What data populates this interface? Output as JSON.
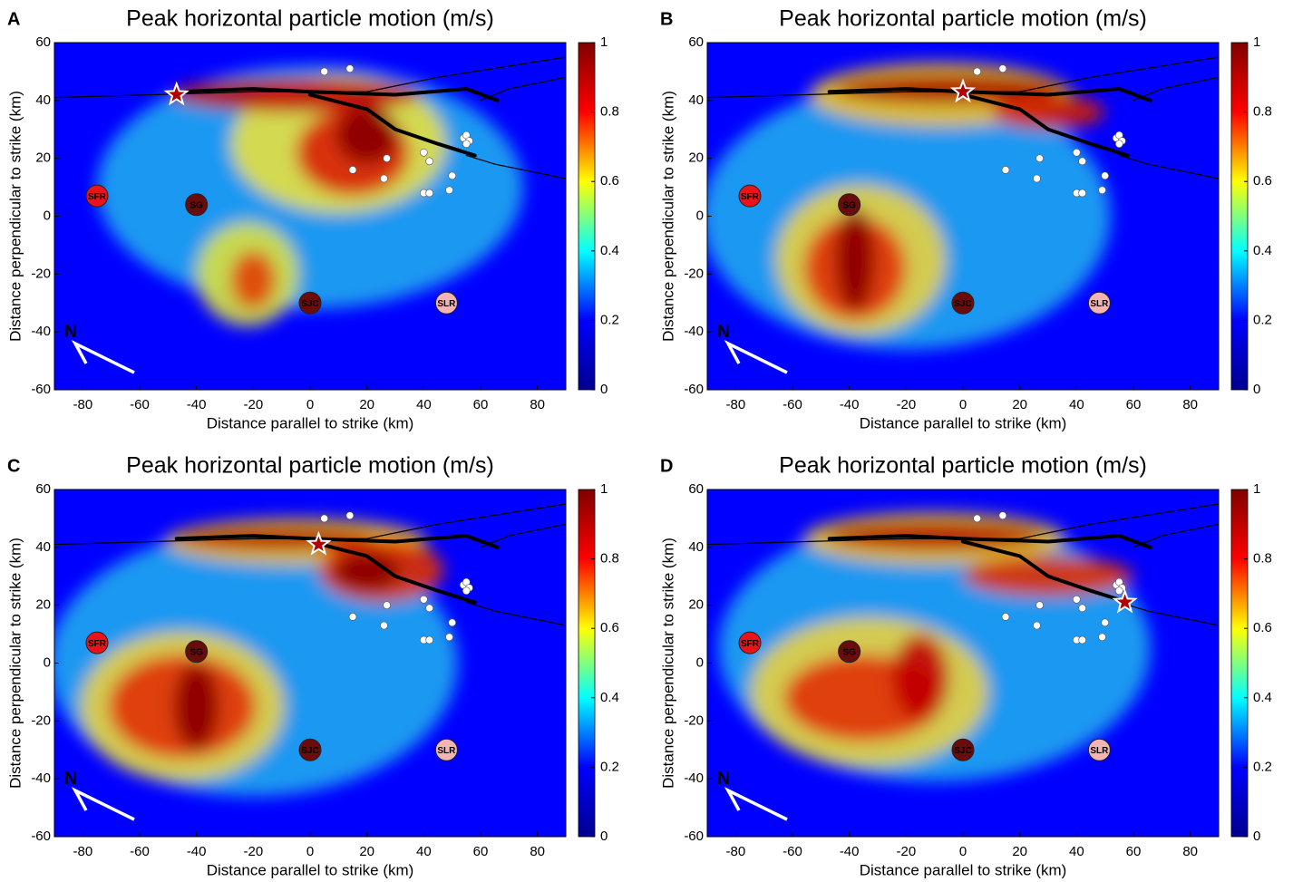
{
  "chart_data": [
    {
      "type": "heatmap",
      "panel": "A",
      "title": "Peak horizontal particle motion (m/s)",
      "x_label": "Distance parallel to strike (km)",
      "y_label": "Distance perpendicular to strike (km)",
      "xlim": [
        -90,
        90
      ],
      "ylim": [
        -60,
        60
      ],
      "xticks": [
        -80,
        -60,
        -40,
        -20,
        0,
        20,
        40,
        60,
        80
      ],
      "yticks": [
        -60,
        -40,
        -20,
        0,
        20,
        40,
        60
      ],
      "colorbar": {
        "lim": [
          0,
          1
        ],
        "ticks": [
          0,
          0.2,
          0.4,
          0.6,
          0.8,
          1
        ],
        "colors": [
          "#00008f",
          "#0000ff",
          "#00ffff",
          "#ffff00",
          "#ff0000",
          "#800000"
        ]
      },
      "north_label": "N",
      "hypocenter": {
        "x": -47,
        "y": 42
      },
      "sites": [
        {
          "label": "SFR",
          "x": -75,
          "y": 7,
          "color": "#e8141a"
        },
        {
          "label": "SG",
          "x": -40,
          "y": 4,
          "color": "#6b0b0b"
        },
        {
          "label": "SJC",
          "x": 0,
          "y": -30,
          "color": "#6b0b0b"
        },
        {
          "label": "SLR",
          "x": 48,
          "y": -30,
          "color": "#f4b4b4"
        }
      ]
    },
    {
      "type": "heatmap",
      "panel": "B",
      "title": "Peak horizontal particle motion (m/s)",
      "x_label": "Distance parallel to strike (km)",
      "y_label": "Distance perpendicular to strike (km)",
      "xlim": [
        -90,
        90
      ],
      "ylim": [
        -60,
        60
      ],
      "xticks": [
        -80,
        -60,
        -40,
        -20,
        0,
        20,
        40,
        60,
        80
      ],
      "yticks": [
        -60,
        -40,
        -20,
        0,
        20,
        40,
        60
      ],
      "colorbar": {
        "lim": [
          0,
          1
        ],
        "ticks": [
          0,
          0.2,
          0.4,
          0.6,
          0.8,
          1
        ],
        "colors": [
          "#00008f",
          "#0000ff",
          "#00ffff",
          "#ffff00",
          "#ff0000",
          "#800000"
        ]
      },
      "north_label": "N",
      "hypocenter": {
        "x": 0,
        "y": 43
      },
      "sites": [
        {
          "label": "SFR",
          "x": -75,
          "y": 7,
          "color": "#e8141a"
        },
        {
          "label": "SG",
          "x": -40,
          "y": 4,
          "color": "#6b0b0b"
        },
        {
          "label": "SJC",
          "x": 0,
          "y": -30,
          "color": "#6b0b0b"
        },
        {
          "label": "SLR",
          "x": 48,
          "y": -30,
          "color": "#f4b4b4"
        }
      ]
    },
    {
      "type": "heatmap",
      "panel": "C",
      "title": "Peak horizontal particle motion (m/s)",
      "x_label": "Distance parallel to strike (km)",
      "y_label": "Distance perpendicular to strike (km)",
      "xlim": [
        -90,
        90
      ],
      "ylim": [
        -60,
        60
      ],
      "xticks": [
        -80,
        -60,
        -40,
        -20,
        0,
        20,
        40,
        60,
        80
      ],
      "yticks": [
        -60,
        -40,
        -20,
        0,
        20,
        40,
        60
      ],
      "colorbar": {
        "lim": [
          0,
          1
        ],
        "ticks": [
          0,
          0.2,
          0.4,
          0.6,
          0.8,
          1
        ],
        "colors": [
          "#00008f",
          "#0000ff",
          "#00ffff",
          "#ffff00",
          "#ff0000",
          "#800000"
        ]
      },
      "north_label": "N",
      "hypocenter": {
        "x": 3,
        "y": 41
      },
      "sites": [
        {
          "label": "SFR",
          "x": -75,
          "y": 7,
          "color": "#e8141a"
        },
        {
          "label": "SG",
          "x": -40,
          "y": 4,
          "color": "#6b0b0b"
        },
        {
          "label": "SJC",
          "x": 0,
          "y": -30,
          "color": "#6b0b0b"
        },
        {
          "label": "SLR",
          "x": 48,
          "y": -30,
          "color": "#f4b4b4"
        }
      ]
    },
    {
      "type": "heatmap",
      "panel": "D",
      "title": "Peak horizontal particle motion (m/s)",
      "x_label": "Distance parallel to strike (km)",
      "y_label": "Distance perpendicular to strike (km)",
      "xlim": [
        -90,
        90
      ],
      "ylim": [
        -60,
        60
      ],
      "xticks": [
        -80,
        -60,
        -40,
        -20,
        0,
        20,
        40,
        60,
        80
      ],
      "yticks": [
        -60,
        -40,
        -20,
        0,
        20,
        40,
        60
      ],
      "colorbar": {
        "lim": [
          0,
          1
        ],
        "ticks": [
          0,
          0.2,
          0.4,
          0.6,
          0.8,
          1
        ],
        "colors": [
          "#00008f",
          "#0000ff",
          "#00ffff",
          "#ffff00",
          "#ff0000",
          "#800000"
        ]
      },
      "north_label": "N",
      "hypocenter": {
        "x": 57,
        "y": 21
      },
      "sites": [
        {
          "label": "SFR",
          "x": -75,
          "y": 7,
          "color": "#e8141a"
        },
        {
          "label": "SG",
          "x": -40,
          "y": 4,
          "color": "#6b0b0b"
        },
        {
          "label": "SJC",
          "x": 0,
          "y": -30,
          "color": "#6b0b0b"
        },
        {
          "label": "SLR",
          "x": 48,
          "y": -30,
          "color": "#f4b4b4"
        }
      ]
    }
  ]
}
